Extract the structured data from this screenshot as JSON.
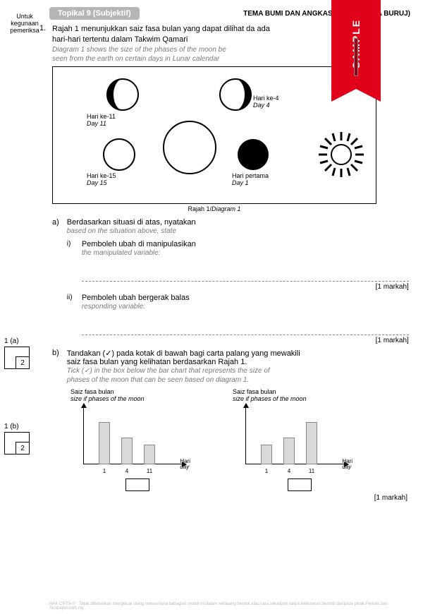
{
  "left": {
    "untuk": "Untuk\nkegunaan\npemeriksa",
    "boxA": {
      "label": "1 (a)",
      "score": "2"
    },
    "boxB": {
      "label": "1 (b)",
      "score": "2"
    }
  },
  "header": {
    "topik": "Topikal 9 (Subjektif)",
    "tema": "TEMA BUMI DAN ANGKASA Unit 9 (FASA                    BURUJ)"
  },
  "ribbon": {
    "text": "SAMPLE"
  },
  "q1": {
    "num": "1.",
    "my1": "Rajah 1 menunjukkan saiz fasa bulan yang dapat dilihat da              ada",
    "my2": "hari-hari tertentu dalam Takwim Qamari",
    "en1": "Diagram 1 shows the size of the phases of the moon               be",
    "en2": "seen from the earth on certain days in Lunar calendar",
    "caption_my": "Rajah 1/",
    "caption_en": "Diagram 1"
  },
  "moons": {
    "m11": {
      "my": "Hari ke-11",
      "en": "Day 11"
    },
    "m4": {
      "my": "Hari ke-4",
      "en": "Day 4"
    },
    "m15": {
      "my": "Hari ke-15",
      "en": "Day 15"
    },
    "m1": {
      "my": "Hari pertama",
      "en": "Day 1"
    }
  },
  "qa": {
    "letter": "a)",
    "my": "Berdasarkan situasi di atas, nyatakan",
    "en": "based on the situation above, state",
    "i_num": "i)",
    "i_my": "Pemboleh ubah di manipulasikan",
    "i_en": "the manipulated variable:",
    "ii_num": "ii)",
    "ii_my": "Pemboleh ubah bergerak balas",
    "ii_en": "responding variable:",
    "mark": "[1 markah]"
  },
  "qb": {
    "letter": "b)",
    "my1": "Tandakan (✓) pada kotak di bawah bagi carta palang yang mewakili",
    "my2": "saiz fasa bulan yang kelihatan berdasarkan Rajah 1.",
    "en1": "Tick (✓)  in the box below the bar chart that represents the size of",
    "en2": "phases of the moon that can be seen based on diagram 1.",
    "mark": "[1 markah]"
  },
  "chart": {
    "ytitle_my": "Saiz fasa bulan",
    "ytitle_en": "size if phases of the moon",
    "xtitle_my": "Hari",
    "xtitle_en": "day",
    "ticks": [
      "1",
      "4",
      "11"
    ],
    "left_heights": [
      60,
      38,
      28
    ],
    "right_heights": [
      28,
      38,
      60
    ],
    "bar_color": "#d9d9d9"
  },
  "footer": "HAK CIPTA © · Tidak dibenarkan mengeluar ulang mana-mana bahagian modul ini dalam sebarang bentuk atau cara sekalipun tanpa kebenaran bertulis daripada pihak Penulis dan Testpaper.com.my"
}
